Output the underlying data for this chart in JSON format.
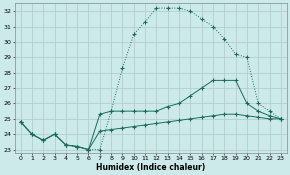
{
  "xlabel": "Humidex (Indice chaleur)",
  "bg_color": "#cdeaea",
  "grid_color": "#b0c8c8",
  "line_color": "#1a6b5a",
  "ylim": [
    22.8,
    32.5
  ],
  "xlim": [
    -0.5,
    23.5
  ],
  "yticks": [
    23,
    24,
    25,
    26,
    27,
    28,
    29,
    30,
    31,
    32
  ],
  "xticks": [
    0,
    1,
    2,
    3,
    4,
    5,
    6,
    7,
    8,
    9,
    10,
    11,
    12,
    13,
    14,
    15,
    16,
    17,
    18,
    19,
    20,
    21,
    22,
    23
  ],
  "series": [
    {
      "x": [
        0,
        1,
        2,
        3,
        4,
        5,
        6,
        7,
        8,
        9,
        10,
        11,
        12,
        13,
        14,
        15,
        16,
        17,
        18,
        19,
        20,
        21,
        22,
        23
      ],
      "y": [
        24.8,
        24.0,
        23.6,
        24.0,
        23.3,
        23.2,
        23.0,
        23.0,
        25.5,
        28.3,
        30.5,
        31.3,
        32.2,
        32.2,
        32.2,
        32.0,
        31.5,
        31.0,
        30.2,
        29.2,
        29.0,
        26.0,
        25.5,
        25.0
      ],
      "dotted": true
    },
    {
      "x": [
        0,
        1,
        2,
        3,
        4,
        5,
        6,
        7,
        8,
        9,
        10,
        11,
        12,
        13,
        14,
        15,
        16,
        17,
        18,
        19,
        20,
        21,
        22,
        23
      ],
      "y": [
        24.8,
        24.0,
        23.6,
        24.0,
        23.3,
        23.2,
        23.0,
        25.3,
        25.5,
        25.5,
        25.5,
        25.5,
        25.5,
        25.8,
        26.0,
        26.5,
        27.0,
        27.5,
        27.5,
        27.5,
        26.0,
        25.5,
        25.2,
        25.0
      ],
      "dotted": false
    },
    {
      "x": [
        0,
        1,
        2,
        3,
        4,
        5,
        6,
        7,
        8,
        9,
        10,
        11,
        12,
        13,
        14,
        15,
        16,
        17,
        18,
        19,
        20,
        21,
        22,
        23
      ],
      "y": [
        24.8,
        24.0,
        23.6,
        24.0,
        23.3,
        23.2,
        23.0,
        24.2,
        24.3,
        24.4,
        24.5,
        24.6,
        24.7,
        24.8,
        24.9,
        25.0,
        25.1,
        25.2,
        25.3,
        25.3,
        25.2,
        25.1,
        25.0,
        25.0
      ],
      "dotted": false
    }
  ]
}
